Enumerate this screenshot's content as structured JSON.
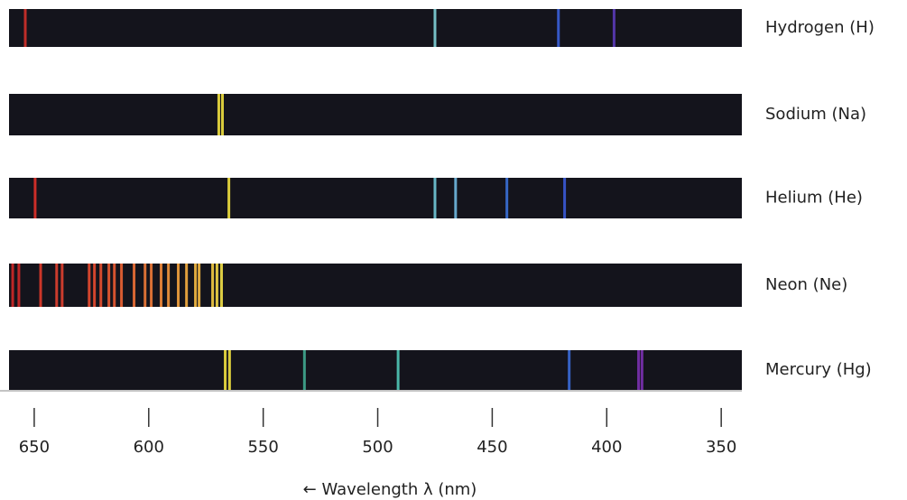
{
  "chart_data": {
    "type": "spectra",
    "x_label": "← Wavelength λ (nm)",
    "xlim": [
      661,
      341
    ],
    "xticks": [
      650,
      600,
      550,
      500,
      450,
      400,
      350
    ],
    "background": "#14141c",
    "series": [
      {
        "name": "Hydrogen (H)",
        "values": [
          653.9,
          475,
          421.1,
          396.8
        ],
        "colors": [
          "#d0302a",
          "#7fd0d8",
          "#3a5fd8",
          "#5a3ab8"
        ]
      },
      {
        "name": "Sodium (Na)",
        "values": [
          569.4,
          567.8
        ],
        "colors": [
          "#f0e040",
          "#f0e040"
        ]
      },
      {
        "name": "Helium (He)",
        "values": [
          649.6,
          565,
          475,
          466,
          443.6,
          418.4
        ],
        "colors": [
          "#e0302a",
          "#f0e040",
          "#70c8d8",
          "#70b8e0",
          "#3a70d8",
          "#3a5ad8"
        ]
      },
      {
        "name": "Neon (Ne)",
        "values": [
          659.4,
          656.7,
          647.2,
          640.2,
          637.8,
          626.0,
          623.7,
          620.9,
          617.4,
          615.0,
          611.9,
          606.4,
          601.6,
          598.9,
          594.6,
          591.4,
          587.1,
          583.5,
          579.6,
          578.0,
          572.1,
          570.2,
          568.2
        ],
        "colors": [
          "#d02828",
          "#d02828",
          "#e03a2a",
          "#e04030",
          "#e04030",
          "#e84a30",
          "#e84a30",
          "#e85030",
          "#ea5a32",
          "#ea5a32",
          "#ee6434",
          "#ee7036",
          "#f07a38",
          "#f07a38",
          "#f28a3a",
          "#f4963c",
          "#f4a23e",
          "#f6ae40",
          "#f6ba42",
          "#f6ba42",
          "#f4cc44",
          "#f4d846",
          "#f2e048"
        ]
      },
      {
        "name": "Mercury (Hg)",
        "values": [
          566.6,
          564.7,
          532.0,
          491.1,
          416.4,
          386.1,
          384.6
        ],
        "colors": [
          "#f0e040",
          "#f0e040",
          "#40a890",
          "#50c8b8",
          "#3a6ad8",
          "#7a30b0",
          "#7a30b0"
        ]
      }
    ]
  }
}
